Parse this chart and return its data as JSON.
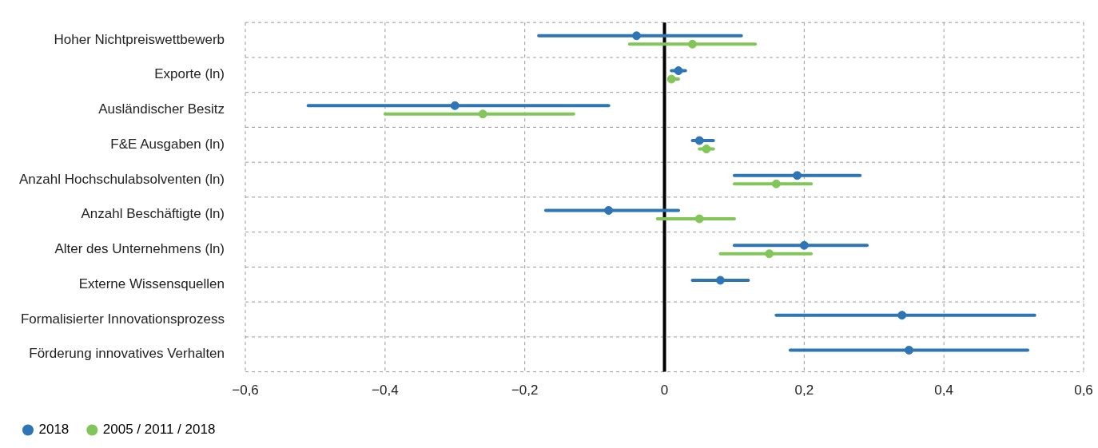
{
  "chart_data": {
    "type": "scatter",
    "orientation": "horizontal",
    "categories": [
      "Hoher Nichtpreiswettbewerb",
      "Exporte (ln)",
      "Ausländischer Besitz",
      "F&E Ausgaben (ln)",
      "Anzahl Hochschulabsolventen (ln)",
      "Anzahl Beschäftigte (ln)",
      "Alter des Unternehmens (ln)",
      "Externe Wissensquellen",
      "Formalisierter Innovationsprozess",
      "Förderung innovatives Verhalten"
    ],
    "series": [
      {
        "name": "2018",
        "color": "#2e75b6",
        "values": [
          -0.04,
          0.02,
          -0.3,
          0.05,
          0.19,
          -0.08,
          0.2,
          0.08,
          0.34,
          0.35
        ],
        "errors": [
          [
            -0.18,
            0.11
          ],
          [
            0.01,
            0.03
          ],
          [
            -0.51,
            -0.08
          ],
          [
            0.04,
            0.07
          ],
          [
            0.1,
            0.28
          ],
          [
            -0.17,
            0.02
          ],
          [
            0.1,
            0.29
          ],
          [
            0.04,
            0.12
          ],
          [
            0.16,
            0.53
          ],
          [
            0.18,
            0.52
          ]
        ]
      },
      {
        "name": "2005 / 2011 / 2018",
        "color": "#82c65a",
        "values": [
          0.04,
          0.01,
          -0.26,
          0.06,
          0.16,
          0.05,
          0.15,
          null,
          null,
          null
        ],
        "errors": [
          [
            -0.05,
            0.13
          ],
          [
            0.01,
            0.02
          ],
          [
            -0.4,
            -0.13
          ],
          [
            0.05,
            0.07
          ],
          [
            0.1,
            0.21
          ],
          [
            -0.01,
            0.1
          ],
          [
            0.08,
            0.21
          ],
          null,
          null,
          null
        ]
      }
    ],
    "xlim": [
      -0.6,
      0.6
    ],
    "xticks": [
      {
        "value": -0.6,
        "label": "−0,6"
      },
      {
        "value": -0.4,
        "label": "−0,4"
      },
      {
        "value": -0.2,
        "label": "−0,2"
      },
      {
        "value": 0,
        "label": "0"
      },
      {
        "value": 0.2,
        "label": "0,2"
      },
      {
        "value": 0.4,
        "label": "0,4"
      },
      {
        "value": 0.6,
        "label": "0,6"
      }
    ],
    "ref_lines": [
      {
        "axis": "x",
        "value": 0,
        "color": "#000000"
      }
    ],
    "grid": true,
    "legend": "bottom",
    "marker": "circle"
  }
}
